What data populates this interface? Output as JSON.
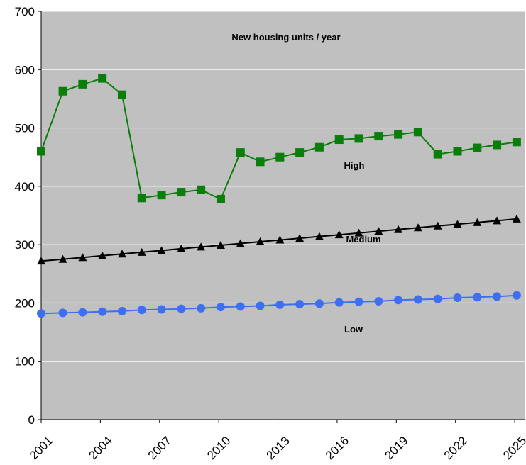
{
  "chart_data": {
    "type": "line",
    "title": "New housing units / year",
    "xlabel": "",
    "ylabel": "",
    "ylim": [
      0,
      700
    ],
    "yticks": [
      "0",
      "100",
      "200",
      "300",
      "400",
      "500",
      "600",
      "700"
    ],
    "xlim": [
      2001,
      2025.5
    ],
    "xticks": [
      "2001",
      "2004",
      "2007",
      "2010",
      "2013",
      "2016",
      "2019",
      "2022",
      "2025"
    ],
    "grid": true,
    "legend": "none",
    "plot_background": "#c0c0c0",
    "series": [
      {
        "name": "High",
        "color": "#0a7d0a",
        "marker": "square",
        "x": [
          2001,
          2002.1,
          2003.1,
          2004.1,
          2005.1,
          2006.1,
          2007.1,
          2008.1,
          2009.1,
          2010.1,
          2011.1,
          2012.1,
          2013.1,
          2014.1,
          2015.1,
          2016.1,
          2017.1,
          2018.1,
          2019.1,
          2020.1,
          2021.1,
          2022.1,
          2023.1,
          2024.1,
          2025.1
        ],
        "values": [
          460,
          563,
          575,
          585,
          557,
          380,
          385,
          390,
          394,
          378,
          458,
          442,
          450,
          458,
          467,
          480,
          482,
          486,
          489,
          493,
          455,
          460,
          466,
          471,
          476
        ]
      },
      {
        "name": "Medium",
        "color": "#000000",
        "marker": "triangle",
        "x": [
          2001,
          2002.1,
          2003.1,
          2004.1,
          2005.1,
          2006.1,
          2007.1,
          2008.1,
          2009.1,
          2010.1,
          2011.1,
          2012.1,
          2013.1,
          2014.1,
          2015.1,
          2016.1,
          2017.1,
          2018.1,
          2019.1,
          2020.1,
          2021.1,
          2022.1,
          2023.1,
          2024.1,
          2025.1
        ],
        "values": [
          272,
          275,
          278,
          281,
          284,
          287,
          290,
          293,
          296,
          299,
          302,
          305,
          308,
          311,
          314,
          317,
          320,
          323,
          326,
          329,
          332,
          335,
          338,
          341,
          344
        ]
      },
      {
        "name": "Low",
        "color": "#3d6ff0",
        "marker": "circle",
        "x": [
          2001,
          2002.1,
          2003.1,
          2004.1,
          2005.1,
          2006.1,
          2007.1,
          2008.1,
          2009.1,
          2010.1,
          2011.1,
          2012.1,
          2013.1,
          2014.1,
          2015.1,
          2016.1,
          2017.1,
          2018.1,
          2019.1,
          2020.1,
          2021.1,
          2022.1,
          2023.1,
          2024.1,
          2025.1
        ],
        "values": [
          182,
          183,
          184,
          185,
          186,
          188,
          189,
          190,
          191,
          193,
          194,
          195,
          197,
          198,
          199,
          201,
          202,
          203,
          205,
          206,
          207,
          209,
          210,
          211,
          213
        ]
      }
    ]
  }
}
